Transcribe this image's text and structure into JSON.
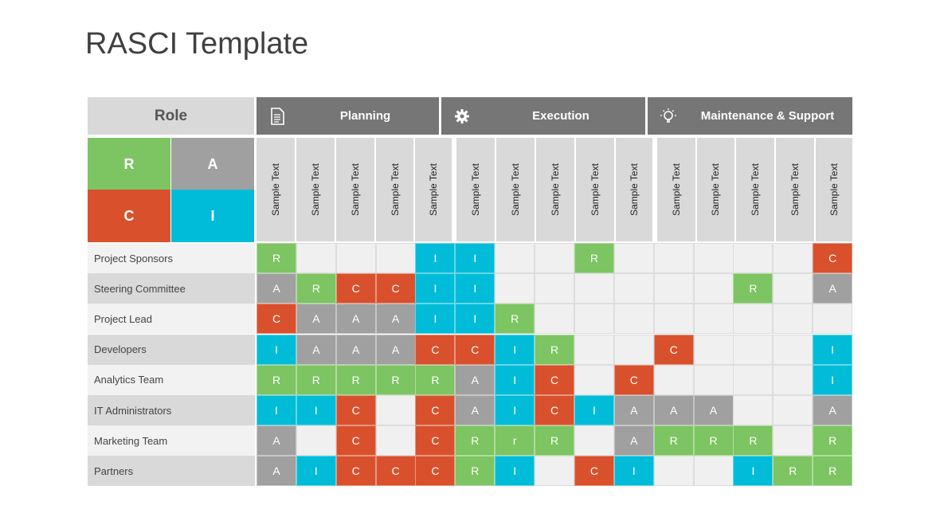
{
  "title": "RASCI Template",
  "role_label": "Role",
  "legend": [
    {
      "letter": "R",
      "color": "#7dc462"
    },
    {
      "letter": "A",
      "color": "#a0a0a0"
    },
    {
      "letter": "C",
      "color": "#d9512c"
    },
    {
      "letter": "I",
      "color": "#00bcd8"
    }
  ],
  "phases": [
    {
      "label": "Planning",
      "icon": "document-icon"
    },
    {
      "label": "Execution",
      "icon": "gear-icon"
    },
    {
      "label": "Maintenance & Support",
      "icon": "lightbulb-icon"
    }
  ],
  "sub_columns": [
    "Sample Text",
    "Sample Text",
    "Sample Text",
    "Sample Text",
    "Sample Text",
    "Sample Text",
    "Sample Text",
    "Sample Text",
    "Sample Text",
    "Sample Text",
    "Sample Text",
    "Sample Text",
    "Sample Text",
    "Sample Text",
    "Sample Text"
  ],
  "colors": {
    "R": "#7dc462",
    "A": "#a0a0a0",
    "C": "#d9512c",
    "I": "#00bcd8",
    "empty": "#f0f0f0",
    "header": "#767676"
  },
  "rows": [
    {
      "role": "Project Sponsors",
      "cells": [
        "R",
        "",
        "",
        "",
        "I",
        "I",
        "",
        "",
        "R",
        "",
        "",
        "",
        "",
        "",
        "C"
      ]
    },
    {
      "role": "Steering Committee",
      "cells": [
        "A",
        "R",
        "C",
        "C",
        "I",
        "I",
        "",
        "",
        "",
        "",
        "",
        "",
        "R",
        "",
        "A"
      ]
    },
    {
      "role": "Project Lead",
      "cells": [
        "C",
        "A",
        "A",
        "A",
        "I",
        "I",
        "R",
        "",
        "",
        "",
        "",
        "",
        "",
        "",
        ""
      ]
    },
    {
      "role": "Developers",
      "cells": [
        "I",
        "A",
        "A",
        "A",
        "C",
        "C",
        "I",
        "R",
        "",
        "",
        "C",
        "",
        "",
        "",
        "I"
      ]
    },
    {
      "role": "Analytics Team",
      "cells": [
        "R",
        "R",
        "R",
        "R",
        "R",
        "A",
        "I",
        "C",
        "",
        "C",
        "",
        "",
        "",
        "",
        "I"
      ]
    },
    {
      "role": "IT Administrators",
      "cells": [
        "I",
        "I",
        "C",
        "",
        "C",
        "A",
        "I",
        "C",
        "I",
        "A",
        "A",
        "A",
        "",
        "",
        "A"
      ]
    },
    {
      "role": "Marketing Team",
      "cells": [
        "A",
        "",
        "C",
        "",
        "C",
        "R",
        "r",
        "R",
        "",
        "A",
        "R",
        "R",
        "R",
        "",
        "R"
      ]
    },
    {
      "role": "Partners",
      "cells": [
        "A",
        "I",
        "C",
        "C",
        "C",
        "R",
        "I",
        "",
        "C",
        "I",
        "",
        "",
        "I",
        "R",
        "R"
      ]
    }
  ]
}
